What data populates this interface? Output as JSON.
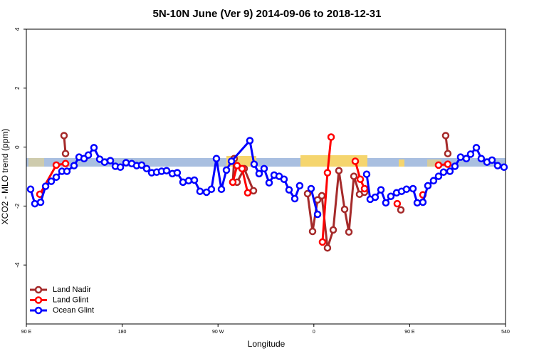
{
  "chart_data": {
    "type": "line",
    "title": "5N-10N June (Ver 9)   2014-09-06 to 2018-12-31",
    "x_label": "Longitude",
    "y_label": "XCO2 - MLO trend (ppm)",
    "xlim": [
      90,
      540
    ],
    "ylim": [
      -6,
      4
    ],
    "xticks": [
      {
        "value": 90,
        "label": "90 E"
      },
      180,
      {
        "value": 270,
        "label": "90 W"
      },
      {
        "value": 360,
        "label": "0"
      },
      {
        "value": 450,
        "label": "90 E"
      },
      540
    ],
    "yticks": [
      -4,
      -2,
      0,
      2,
      4
    ],
    "legend": "bottomleft",
    "series": [
      {
        "name": "Land Nadir",
        "color": "#a52a2a",
        "x": [
          125.4,
          126.8,
          null,
          285.2,
          283.9,
          287.9,
          294.6,
          303.3,
          null,
          354.1,
          358.8,
          363.5,
          367.5,
          372.8,
          378.2,
          383.5,
          388.9,
          392.9,
          397.6,
          402.9,
          407.6,
          null,
          441.7,
          null,
          483.8,
          485.8
        ],
        "values": [
          0.39,
          -0.22,
          null,
          -0.39,
          -1.19,
          -1.19,
          -0.73,
          -1.48,
          null,
          -1.58,
          -2.86,
          -1.79,
          -1.65,
          -3.42,
          -2.81,
          -0.8,
          -2.11,
          -2.88,
          -0.99,
          -1.6,
          -1.53,
          null,
          -2.13,
          null,
          0.39,
          -0.22
        ]
      },
      {
        "name": "Land Glint",
        "color": "#ff0000",
        "x": [
          102.7,
          118.1,
          126.8,
          null,
          283.9,
          287.9,
          292.6,
          297.9,
          null,
          368.1,
          372.8,
          376.2,
          null,
          398.9,
          403.6,
          407.6,
          null,
          438.3,
          null,
          462.4,
          null,
          477.1,
          485.8
        ],
        "values": [
          -1.6,
          -0.61,
          -0.56,
          null,
          -1.19,
          -0.63,
          -0.73,
          -1.55,
          null,
          -3.22,
          -0.87,
          0.34,
          null,
          -0.48,
          -1.09,
          -1.41,
          null,
          -1.92,
          null,
          -1.62,
          null,
          -0.61,
          -0.58
        ]
      },
      {
        "name": "Ocean Glint",
        "color": "#0000ff",
        "x": [
          94.0,
          98.0,
          103.4,
          108.1,
          113.4,
          118.1,
          123.4,
          128.1,
          134.8,
          139.5,
          144.2,
          148.2,
          153.5,
          158.9,
          163.5,
          168.9,
          173.6,
          178.3,
          183.6,
          189.0,
          193.6,
          198.3,
          203.0,
          207.7,
          212.4,
          217.0,
          221.7,
          227.1,
          231.7,
          237.1,
          242.4,
          247.8,
          253.1,
          259.2,
          263.8,
          268.5,
          273.2,
          277.9,
          282.6,
          299.9,
          303.9,
          308.6,
          313.3,
          318.0,
          322.7,
          327.4,
          332.0,
          336.7,
          342.1,
          346.7,
          null,
          357.4,
          363.5,
          null,
          409.6,
          412.9,
          417.6,
          423.0,
          427.6,
          432.3,
          437.7,
          442.4,
          447.0,
          453.1,
          457.1,
          462.4,
          467.1,
          472.4,
          477.1,
          481.8,
          487.8,
          492.5,
          497.8,
          503.2,
          507.2,
          512.6,
          517.2,
          522.6,
          527.3,
          532.6,
          538.6
        ],
        "values": [
          -1.43,
          -1.92,
          -1.87,
          -1.33,
          -1.16,
          -1.02,
          -0.82,
          -0.82,
          -0.63,
          -0.34,
          -0.39,
          -0.27,
          -0.02,
          -0.41,
          -0.51,
          -0.46,
          -0.65,
          -0.68,
          -0.53,
          -0.56,
          -0.63,
          -0.61,
          -0.73,
          -0.87,
          -0.85,
          -0.82,
          -0.8,
          -0.9,
          -0.87,
          -1.19,
          -1.14,
          -1.12,
          -1.5,
          -1.53,
          -1.43,
          -0.39,
          -1.43,
          -0.78,
          -0.48,
          0.22,
          -0.58,
          -0.9,
          -0.73,
          -1.21,
          -0.95,
          -0.99,
          -1.09,
          -1.45,
          -1.75,
          -1.31,
          null,
          -1.41,
          -2.28,
          null,
          -0.92,
          -1.77,
          -1.7,
          -1.45,
          -1.89,
          -1.67,
          -1.55,
          -1.5,
          -1.43,
          -1.41,
          -1.89,
          -1.87,
          -1.31,
          -1.14,
          -0.99,
          -0.85,
          -0.82,
          -0.65,
          -0.34,
          -0.39,
          -0.24,
          -0.02,
          -0.39,
          -0.51,
          -0.44,
          -0.63,
          -0.68
        ]
      }
    ]
  }
}
